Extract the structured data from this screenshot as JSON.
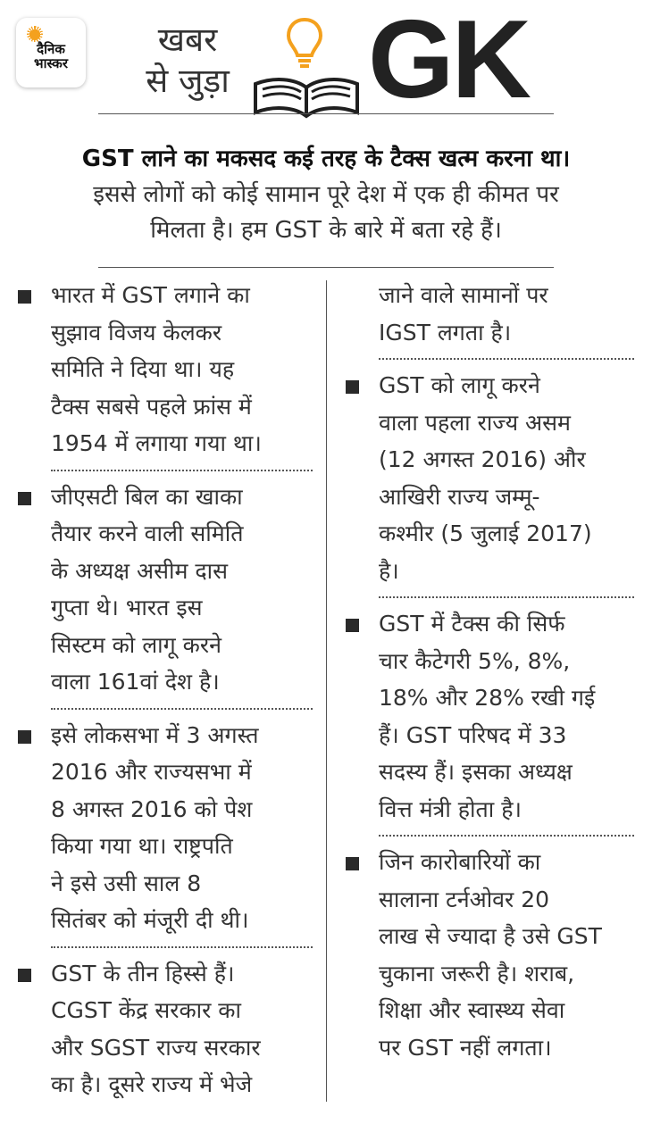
{
  "logo": {
    "line1": "दैनिक",
    "line2": "भास्कर"
  },
  "header": {
    "tagline_line1": "खबर",
    "tagline_line2": "से जुड़ा",
    "gk": "GK",
    "icons": [
      "bulb-icon",
      "open-book-icon"
    ]
  },
  "intro": {
    "headline": "GST लाने का मकसद कई तरह के टैक्स खत्म करना था।",
    "body": "इससे लोगों को कोई सामान पूरे देश में एक ही कीमत पर\nमिलता है। हम GST के बारे में बता रहे हैं।"
  },
  "left_items": [
    "भारत में GST लगाने का\nसुझाव विजय केलकर\nसमिति ने दिया था। यह\nटैक्स सबसे पहले फ्रांस में\n1954 में लगाया गया था।",
    "जीएसटी बिल का खाका\nतैयार करने वाली समिति\nके अध्यक्ष असीम दास\nगुप्ता थे। भारत इस\nसिस्टम को लागू करने\nवाला 161वां देश है।",
    "इसे लोकसभा में 3 अगस्त\n2016 और राज्यसभा में\n8 अगस्त 2016 को पेश\nकिया गया था। राष्ट्रपति\nने इसे उसी साल 8\nसितंबर को मंजूरी दी थी।",
    "GST के तीन हिस्से हैं।\nCGST केंद्र सरकार का\nऔर SGST राज्य सरकार\nका है। दूसरे राज्य में भेजे"
  ],
  "right_continuation": "जाने वाले सामानों पर\nIGST लगता है।",
  "right_items": [
    "GST को लागू करने\nवाला पहला राज्य असम\n(12 अगस्त 2016) और\nआखिरी राज्य जम्मू-\nकश्मीर (5 जुलाई 2017)\nहै।",
    "GST में टैक्स की सिर्फ\nचार कैटेगरी 5%, 8%,\n18% और 28% रखी गई\nहैं। GST परिषद में 33\nसदस्य हैं। इसका अध्यक्ष\nवित्त मंत्री होता है।",
    "जिन कारोबारियों का\nसालाना टर्नओवर 20\nलाख से ज्यादा है उसे GST\nचुकाना जरूरी है। शराब,\nशिक्षा और स्वास्थ्य सेवा\nपर GST नहीं लगता।"
  ],
  "colors": {
    "accent": "#f4a11e",
    "text": "#333333",
    "rule": "#555555"
  }
}
